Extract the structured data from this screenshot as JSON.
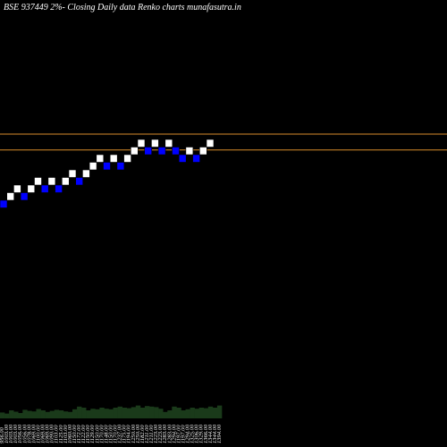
{
  "chart_data": {
    "type": "renko",
    "title": "BSE 937449 2%-  Closing Daily data  Renko  charts munafasutra.in",
    "colors": {
      "background": "#000000",
      "up_brick": "#ffffff",
      "down_brick": "#0000ff",
      "reference_line": "#d98c2b",
      "volume": "#1a3a1a"
    },
    "reference_lines": [
      1238.5,
      1213.5
    ],
    "bricks": [
      {
        "dir": "down",
        "low": 1122,
        "high": 1134
      },
      {
        "dir": "up",
        "low": 1134,
        "high": 1146
      },
      {
        "dir": "up",
        "low": 1146,
        "high": 1158
      },
      {
        "dir": "down",
        "low": 1134,
        "high": 1146
      },
      {
        "dir": "up",
        "low": 1146,
        "high": 1158
      },
      {
        "dir": "up",
        "low": 1158,
        "high": 1170
      },
      {
        "dir": "down",
        "low": 1146,
        "high": 1158
      },
      {
        "dir": "up",
        "low": 1158,
        "high": 1170
      },
      {
        "dir": "down",
        "low": 1146,
        "high": 1158
      },
      {
        "dir": "up",
        "low": 1158,
        "high": 1170
      },
      {
        "dir": "up",
        "low": 1170,
        "high": 1182
      },
      {
        "dir": "down",
        "low": 1158,
        "high": 1170
      },
      {
        "dir": "up",
        "low": 1170,
        "high": 1182
      },
      {
        "dir": "up",
        "low": 1182,
        "high": 1194
      },
      {
        "dir": "up",
        "low": 1194,
        "high": 1206
      },
      {
        "dir": "down",
        "low": 1182,
        "high": 1194
      },
      {
        "dir": "up",
        "low": 1194,
        "high": 1206
      },
      {
        "dir": "down",
        "low": 1182,
        "high": 1194
      },
      {
        "dir": "up",
        "low": 1194,
        "high": 1206
      },
      {
        "dir": "up",
        "low": 1206,
        "high": 1218
      },
      {
        "dir": "up",
        "low": 1218,
        "high": 1230
      },
      {
        "dir": "down",
        "low": 1206,
        "high": 1218
      },
      {
        "dir": "up",
        "low": 1218,
        "high": 1230
      },
      {
        "dir": "down",
        "low": 1206,
        "high": 1218
      },
      {
        "dir": "up",
        "low": 1218,
        "high": 1230
      },
      {
        "dir": "down",
        "low": 1206,
        "high": 1218
      },
      {
        "dir": "down",
        "low": 1194,
        "high": 1206
      },
      {
        "dir": "up",
        "low": 1206,
        "high": 1218
      },
      {
        "dir": "down",
        "low": 1194,
        "high": 1206
      },
      {
        "dir": "up",
        "low": 1206,
        "high": 1218
      },
      {
        "dir": "up",
        "low": 1218,
        "high": 1230
      }
    ],
    "volume_labels": [
      "956.00",
      "1003.00",
      "1003.00",
      "1003.00",
      "1056.00",
      "1056.00",
      "1078.00",
      "1069.00",
      "1100.00",
      "1069.00",
      "1069.00",
      "1090.00",
      "1103.00",
      "1125.00",
      "1103.00",
      "1060.00",
      "1150.00",
      "1172.00",
      "1122.00",
      "1150.00",
      "1129.00",
      "1150.00",
      "1170.00",
      "1148.00",
      "1150.00",
      "1170.00",
      "1237.00",
      "1175.00",
      "1194.00",
      "1250.00",
      "1250.00",
      "1182.00",
      "1211.00",
      "1211.00",
      "1223.00",
      "1223.00",
      "1283.00",
      "1283.00",
      "1294.00",
      "1197.00",
      "1197.00",
      "1294.00",
      "1325.00",
      "1306.00",
      "1329.00",
      "1366.00",
      "1344.00",
      "1344.00",
      "1394.00"
    ],
    "volume_values": [
      22,
      18,
      30,
      25,
      20,
      32,
      28,
      26,
      35,
      30,
      24,
      28,
      32,
      30,
      26,
      24,
      34,
      44,
      40,
      30,
      36,
      34,
      40,
      36,
      34,
      40,
      44,
      40,
      38,
      42,
      48,
      40,
      46,
      44,
      42,
      36,
      24,
      30,
      44,
      40,
      30,
      34,
      40,
      36,
      40,
      38,
      44,
      40,
      48
    ]
  }
}
